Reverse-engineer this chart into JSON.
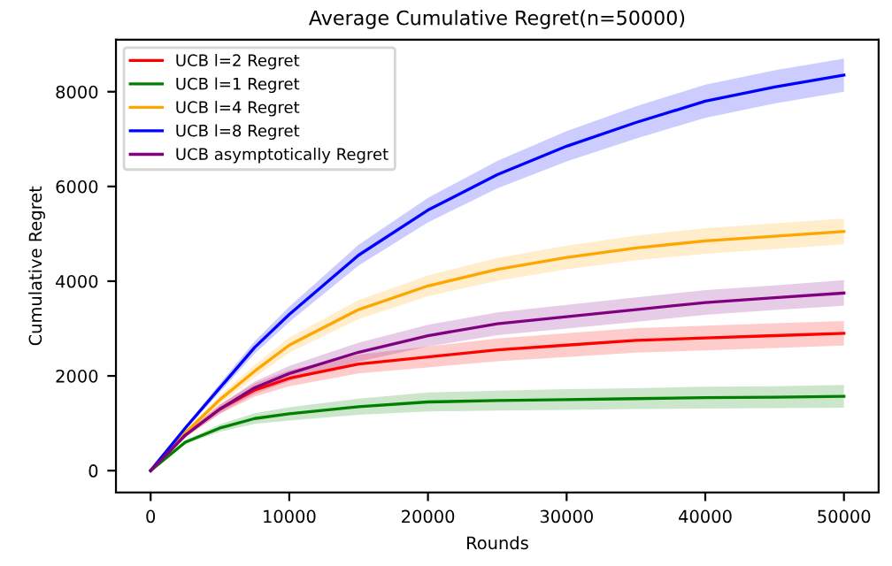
{
  "chart_data": {
    "type": "line",
    "title": "Average Cumulative Regret(n=50000)",
    "xlabel": "Rounds",
    "ylabel": "Cumulative Regret",
    "x": [
      0,
      2500,
      5000,
      7500,
      10000,
      15000,
      20000,
      25000,
      30000,
      35000,
      40000,
      45000,
      50000
    ],
    "series": [
      {
        "name": "UCB l=2 Regret",
        "color": "#ff0000",
        "values": [
          0,
          750,
          1300,
          1700,
          1950,
          2250,
          2400,
          2550,
          2650,
          2750,
          2800,
          2850,
          2900
        ],
        "lower": [
          0,
          700,
          1200,
          1560,
          1780,
          2050,
          2180,
          2310,
          2400,
          2490,
          2540,
          2590,
          2640
        ],
        "upper": [
          0,
          800,
          1400,
          1840,
          2120,
          2450,
          2620,
          2790,
          2900,
          3010,
          3060,
          3110,
          3160
        ]
      },
      {
        "name": "UCB l=1 Regret",
        "color": "#008000",
        "values": [
          0,
          600,
          900,
          1100,
          1200,
          1350,
          1450,
          1480,
          1500,
          1520,
          1540,
          1550,
          1570
        ],
        "lower": [
          0,
          560,
          820,
          990,
          1060,
          1180,
          1250,
          1270,
          1280,
          1300,
          1310,
          1320,
          1330
        ],
        "upper": [
          0,
          640,
          980,
          1210,
          1340,
          1520,
          1650,
          1690,
          1720,
          1740,
          1770,
          1780,
          1810
        ]
      },
      {
        "name": "UCB l=4 Regret",
        "color": "#ffa500",
        "values": [
          0,
          800,
          1500,
          2100,
          2650,
          3400,
          3900,
          4250,
          4500,
          4700,
          4850,
          4950,
          5050
        ],
        "lower": [
          0,
          760,
          1410,
          1970,
          2490,
          3200,
          3680,
          4010,
          4250,
          4440,
          4580,
          4680,
          4780
        ],
        "upper": [
          0,
          840,
          1590,
          2230,
          2810,
          3600,
          4120,
          4490,
          4750,
          4960,
          5120,
          5220,
          5320
        ]
      },
      {
        "name": "UCB l=8 Regret",
        "color": "#0000ff",
        "values": [
          0,
          900,
          1750,
          2600,
          3300,
          4550,
          5500,
          6250,
          6850,
          7350,
          7800,
          8100,
          8350
        ],
        "lower": [
          0,
          860,
          1660,
          2470,
          3140,
          4330,
          5240,
          5960,
          6530,
          7010,
          7450,
          7750,
          8000
        ],
        "upper": [
          0,
          940,
          1840,
          2730,
          3460,
          4770,
          5760,
          6540,
          7170,
          7690,
          8150,
          8450,
          8700
        ]
      },
      {
        "name": "UCB asymptotically Regret",
        "color": "#800080",
        "values": [
          0,
          750,
          1300,
          1750,
          2050,
          2500,
          2850,
          3100,
          3250,
          3400,
          3550,
          3650,
          3750
        ],
        "lower": [
          0,
          710,
          1210,
          1620,
          1890,
          2300,
          2620,
          2860,
          3000,
          3140,
          3290,
          3390,
          3480
        ],
        "upper": [
          0,
          790,
          1390,
          1880,
          2210,
          2700,
          3080,
          3340,
          3500,
          3660,
          3810,
          3910,
          4020
        ]
      }
    ],
    "xlim": [
      -2500,
      52500
    ],
    "ylim": [
      -460,
      9100
    ],
    "xticks": [
      0,
      10000,
      20000,
      30000,
      40000,
      50000
    ],
    "yticks": [
      0,
      2000,
      4000,
      6000,
      8000
    ],
    "legend": "top left",
    "grid": false
  }
}
